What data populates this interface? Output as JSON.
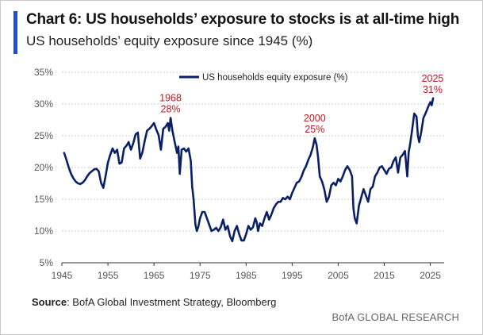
{
  "header": {
    "title": "Chart 6: US households’ exposure to stocks is at all-time high",
    "subtitle": "US households’ equity exposure since 1945 (%)"
  },
  "footer": {
    "source_label": "Source",
    "source_text": ": BofA Global Investment Strategy, Bloomberg",
    "brand": "BofA GLOBAL RESEARCH"
  },
  "colors": {
    "series": "#0b1f66",
    "annotation": "#c4161c",
    "accent": "#1f4bd1"
  },
  "chart_data": {
    "type": "line",
    "title": "",
    "xlabel": "",
    "ylabel": "",
    "xlim": [
      1945,
      2028
    ],
    "ylim": [
      5,
      35
    ],
    "x_ticks": [
      1945,
      1955,
      1965,
      1975,
      1985,
      1995,
      2005,
      2015,
      2025
    ],
    "y_ticks": [
      5,
      10,
      15,
      20,
      25,
      30,
      35
    ],
    "y_tick_labels": [
      "5%",
      "10%",
      "15%",
      "20%",
      "25%",
      "30%",
      "35%"
    ],
    "x_tick_labels": [
      "1945",
      "1955",
      "1965",
      "1975",
      "1985",
      "1995",
      "2005",
      "2015",
      "2025"
    ],
    "legend": {
      "position": "top-center",
      "entries": [
        "US households equity exposure (%)"
      ]
    },
    "annotations": [
      {
        "year_label": "1968",
        "value_label": "28%",
        "x": 1968.6,
        "y": 27.8
      },
      {
        "year_label": "2000",
        "value_label": "25%",
        "x": 1999.9,
        "y": 24.6
      },
      {
        "year_label": "2025",
        "value_label": "31%",
        "x": 2025.5,
        "y": 30.9
      }
    ],
    "series": [
      {
        "name": "US households equity exposure (%)",
        "x": [
          1945.5,
          1946,
          1946.5,
          1947,
          1947.5,
          1948,
          1948.5,
          1949,
          1949.5,
          1950,
          1950.5,
          1951,
          1951.5,
          1952,
          1952.5,
          1953,
          1953.5,
          1954,
          1954.5,
          1955,
          1955.5,
          1956,
          1956.5,
          1957,
          1957.5,
          1958,
          1958.5,
          1959,
          1959.5,
          1960,
          1960.5,
          1961,
          1961.5,
          1962,
          1962.5,
          1963,
          1963.5,
          1964,
          1964.5,
          1965,
          1965.5,
          1966,
          1966.5,
          1967,
          1967.5,
          1968,
          1968.3,
          1968.6,
          1969,
          1969.5,
          1970,
          1970.3,
          1970.6,
          1971,
          1971.5,
          1972,
          1972.5,
          1973,
          1973.3,
          1973.6,
          1974,
          1974.3,
          1974.6,
          1975,
          1975.5,
          1976,
          1976.5,
          1977,
          1977.5,
          1978,
          1978.5,
          1979,
          1979.5,
          1980,
          1980.5,
          1981,
          1981.5,
          1982,
          1982.5,
          1983,
          1983.5,
          1984,
          1984.5,
          1985,
          1985.5,
          1986,
          1986.5,
          1987,
          1987.3,
          1987.6,
          1988,
          1988.5,
          1989,
          1989.5,
          1990,
          1990.5,
          1991,
          1991.5,
          1992,
          1992.5,
          1993,
          1993.5,
          1994,
          1994.5,
          1995,
          1995.5,
          1996,
          1996.5,
          1997,
          1997.5,
          1998,
          1998.5,
          1999,
          1999.5,
          1999.9,
          2000.3,
          2000.6,
          2001,
          2001.5,
          2002,
          2002.5,
          2003,
          2003.5,
          2004,
          2004.5,
          2005,
          2005.5,
          2006,
          2006.5,
          2007,
          2007.5,
          2008,
          2008.3,
          2008.6,
          2009,
          2009.5,
          2010,
          2010.5,
          2011,
          2011.5,
          2012,
          2012.5,
          2013,
          2013.5,
          2014,
          2014.5,
          2015,
          2015.5,
          2016,
          2016.5,
          2017,
          2017.5,
          2018,
          2018.5,
          2019,
          2019.5,
          2020,
          2020.3,
          2020.6,
          2021,
          2021.5,
          2022,
          2022.3,
          2022.6,
          2023,
          2023.5,
          2024,
          2024.5,
          2025,
          2025.3,
          2025.6
        ],
        "values": [
          22.3,
          21.2,
          20.0,
          19.0,
          18.3,
          17.8,
          17.5,
          17.4,
          17.6,
          18.0,
          18.6,
          19.1,
          19.4,
          19.7,
          19.8,
          19.4,
          17.6,
          16.8,
          18.7,
          20.8,
          22.0,
          23.0,
          22.3,
          22.8,
          20.6,
          20.8,
          23.0,
          23.4,
          24.0,
          22.8,
          23.8,
          25.2,
          25.5,
          21.4,
          22.4,
          24.2,
          25.8,
          26.1,
          26.5,
          27.0,
          26.0,
          25.1,
          22.8,
          26.1,
          26.4,
          27.0,
          25.8,
          27.8,
          25.8,
          24.0,
          22.3,
          23.3,
          19.0,
          22.8,
          23.0,
          22.5,
          23.0,
          21.0,
          17.0,
          15.0,
          11.0,
          10.0,
          10.6,
          12.0,
          13.0,
          13.0,
          12.0,
          11.0,
          10.0,
          10.2,
          10.5,
          10.0,
          10.6,
          11.8,
          10.2,
          10.8,
          9.2,
          8.4,
          10.0,
          10.8,
          9.5,
          8.5,
          8.5,
          9.5,
          10.8,
          10.2,
          10.6,
          12.0,
          11.4,
          10.0,
          11.2,
          10.8,
          12.0,
          13.0,
          11.8,
          12.6,
          13.6,
          14.2,
          14.6,
          14.6,
          15.2,
          15.0,
          15.4,
          15.0,
          16.0,
          16.8,
          17.6,
          17.8,
          18.5,
          19.5,
          20.2,
          21.2,
          22.0,
          23.2,
          24.6,
          23.6,
          21.8,
          18.6,
          17.8,
          16.5,
          14.6,
          15.4,
          17.2,
          17.6,
          17.2,
          18.2,
          17.8,
          18.6,
          19.6,
          20.2,
          19.6,
          18.6,
          13.6,
          12.0,
          11.2,
          14.0,
          15.3,
          16.6,
          15.6,
          14.6,
          16.6,
          17.0,
          18.6,
          19.2,
          20.0,
          20.2,
          19.6,
          19.0,
          19.8,
          20.0,
          21.0,
          21.6,
          19.2,
          21.6,
          22.0,
          22.6,
          18.6,
          22.4,
          23.6,
          25.6,
          28.5,
          28.0,
          25.0,
          24.0,
          25.5,
          27.8,
          28.6,
          29.5,
          30.3,
          29.8,
          30.9
        ]
      }
    ]
  }
}
